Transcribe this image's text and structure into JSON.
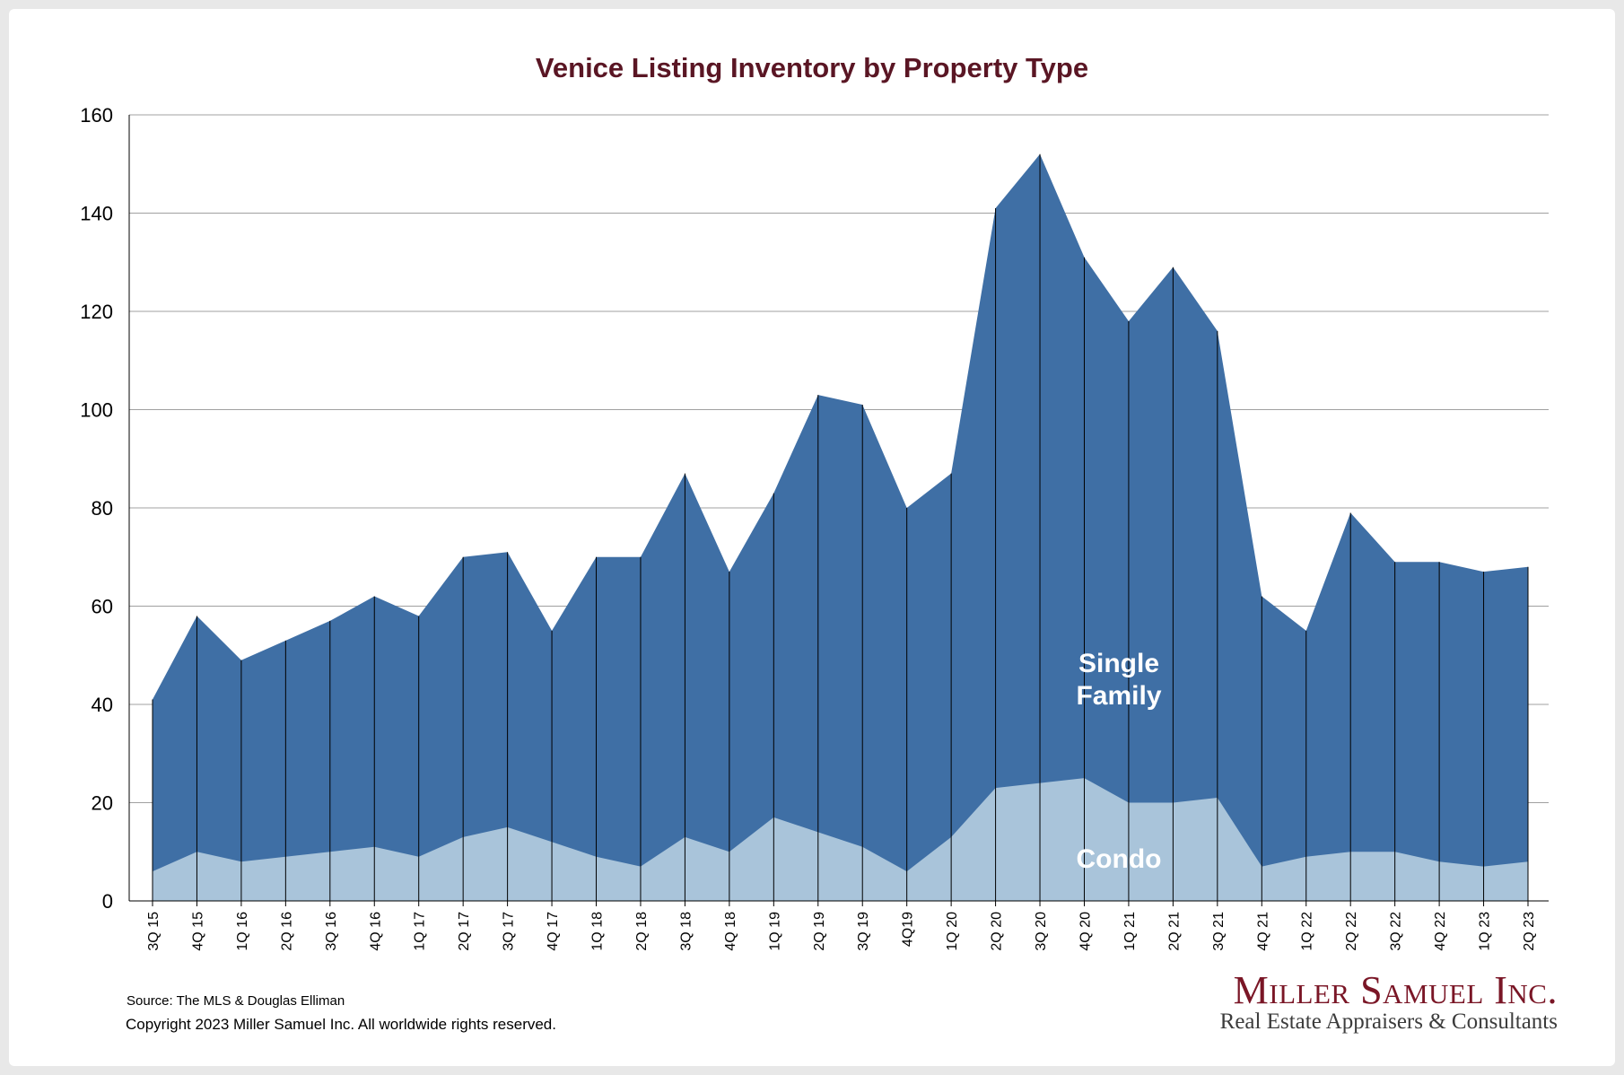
{
  "colors": {
    "single_family": "#3f6fa5",
    "condo": "#a9c4da",
    "title": "#5a1624",
    "grid": "#a0a0a0",
    "brand": "#7a1626"
  },
  "chart_data": {
    "type": "area",
    "stacked": true,
    "title": "Venice Listing Inventory by Property Type",
    "xlabel": "",
    "ylabel": "",
    "ylim": [
      0,
      160
    ],
    "yticks": [
      0,
      20,
      40,
      60,
      80,
      100,
      120,
      140,
      160
    ],
    "grid": true,
    "categories": [
      "3Q 15",
      "4Q 15",
      "1Q 16",
      "2Q 16",
      "3Q 16",
      "4Q 16",
      "1Q 17",
      "2Q 17",
      "3Q 17",
      "4Q 17",
      "1Q 18",
      "2Q 18",
      "3Q 18",
      "4Q 18",
      "1Q 19",
      "2Q 19",
      "3Q 19",
      "4Q19",
      "1Q 20",
      "2Q 20",
      "3Q 20",
      "4Q 20",
      "1Q 21",
      "2Q 21",
      "3Q 21",
      "4Q 21",
      "1Q 22",
      "2Q 22",
      "3Q 22",
      "4Q 22",
      "1Q 23",
      "2Q 23"
    ],
    "series": [
      {
        "name": "Condo",
        "values": [
          6,
          10,
          8,
          9,
          10,
          11,
          9,
          13,
          15,
          12,
          9,
          7,
          13,
          10,
          17,
          14,
          11,
          6,
          13,
          23,
          24,
          25,
          20,
          20,
          21,
          7,
          9,
          10,
          10,
          8,
          7,
          8
        ]
      },
      {
        "name": "Single Family",
        "values": [
          35,
          48,
          41,
          44,
          47,
          51,
          49,
          57,
          56,
          43,
          61,
          63,
          74,
          57,
          66,
          89,
          90,
          74,
          74,
          118,
          128,
          106,
          98,
          109,
          95,
          55,
          46,
          69,
          59,
          61,
          60,
          60
        ]
      }
    ],
    "series_labels": {
      "single_family": [
        "Single",
        "Family"
      ],
      "condo": "Condo"
    }
  },
  "footer": {
    "source": "Source: The MLS & Douglas Elliman",
    "copyright": "Copyright 2023 Miller Samuel Inc.  All worldwide rights reserved."
  },
  "brand": {
    "name": "Miller Samuel Inc.",
    "tagline": "Real Estate Appraisers & Consultants"
  }
}
